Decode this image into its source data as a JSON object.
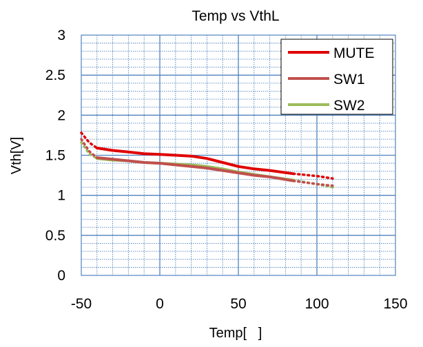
{
  "chart_data": {
    "type": "line",
    "title": "Temp vs VthL",
    "xlabel": "Temp[   ]",
    "ylabel": "Vth[V]",
    "xlim": [
      -50,
      150
    ],
    "ylim": [
      0,
      3
    ],
    "x_ticks": [
      -50,
      0,
      50,
      100,
      150
    ],
    "y_ticks": [
      0,
      0.5,
      1,
      1.5,
      2,
      2.5,
      3
    ],
    "x_tick_labels": [
      "-50",
      "0",
      "50",
      "100",
      "150"
    ],
    "y_tick_labels": [
      "0",
      "0.5",
      "1",
      "1.5",
      "2",
      "2.5",
      "3"
    ],
    "x_minor_step": 10,
    "y_minor_step": 0.1,
    "grid": true,
    "legend_position": "top-right",
    "series": [
      {
        "name": "MUTE",
        "color": "#e00000",
        "solid": [
          [
            -40,
            1.59
          ],
          [
            -30,
            1.56
          ],
          [
            -20,
            1.54
          ],
          [
            -10,
            1.52
          ],
          [
            0,
            1.51
          ],
          [
            10,
            1.5
          ],
          [
            20,
            1.49
          ],
          [
            30,
            1.46
          ],
          [
            40,
            1.41
          ],
          [
            50,
            1.36
          ],
          [
            60,
            1.33
          ],
          [
            70,
            1.31
          ],
          [
            85,
            1.27
          ]
        ],
        "dotted": [
          [
            -50,
            1.78
          ],
          [
            -45,
            1.66
          ],
          [
            -40,
            1.59
          ]
        ],
        "dotted_tail": [
          [
            85,
            1.27
          ],
          [
            100,
            1.24
          ],
          [
            110,
            1.21
          ]
        ]
      },
      {
        "name": "SW1",
        "color": "#c0504d",
        "solid": [
          [
            -40,
            1.47
          ],
          [
            -30,
            1.45
          ],
          [
            -20,
            1.43
          ],
          [
            -10,
            1.41
          ],
          [
            0,
            1.4
          ],
          [
            10,
            1.38
          ],
          [
            20,
            1.36
          ],
          [
            30,
            1.34
          ],
          [
            40,
            1.31
          ],
          [
            50,
            1.28
          ],
          [
            60,
            1.25
          ],
          [
            70,
            1.23
          ],
          [
            85,
            1.18
          ]
        ],
        "dotted": [
          [
            -50,
            1.7
          ],
          [
            -45,
            1.55
          ],
          [
            -40,
            1.47
          ]
        ],
        "dotted_tail": [
          [
            85,
            1.18
          ],
          [
            100,
            1.14
          ],
          [
            110,
            1.12
          ]
        ]
      },
      {
        "name": "SW2",
        "color": "#9bbb59",
        "solid": [
          [
            -40,
            1.46
          ],
          [
            -30,
            1.44
          ],
          [
            -20,
            1.43
          ],
          [
            -10,
            1.41
          ],
          [
            0,
            1.4
          ],
          [
            10,
            1.39
          ],
          [
            20,
            1.38
          ],
          [
            30,
            1.36
          ],
          [
            40,
            1.33
          ],
          [
            50,
            1.29
          ],
          [
            60,
            1.26
          ],
          [
            70,
            1.23
          ],
          [
            85,
            1.19
          ]
        ],
        "dotted": [
          [
            -50,
            1.66
          ],
          [
            -45,
            1.52
          ],
          [
            -40,
            1.46
          ]
        ],
        "dotted_tail": [
          [
            85,
            1.19
          ],
          [
            100,
            1.14
          ],
          [
            110,
            1.1
          ]
        ]
      }
    ]
  }
}
